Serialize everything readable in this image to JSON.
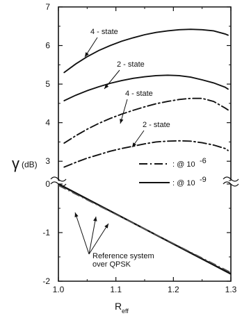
{
  "chart_data": {
    "type": "line",
    "x_label": "R",
    "x_label_sub": "eff",
    "y_label_symbol": "γ",
    "y_label_unit": "(dB)",
    "xlim": [
      1.0,
      1.3
    ],
    "x_ticks": [
      "1.0",
      "1.1",
      "1.2",
      "1.3"
    ],
    "upper_panel": {
      "ylim": [
        2.5,
        7.0
      ],
      "y_ticks": [
        "3",
        "4",
        "5",
        "6",
        "7"
      ],
      "series": [
        {
          "curve_label": "4 - state",
          "style": "solid",
          "points": [
            [
              1.01,
              5.3
            ],
            [
              1.03,
              5.52
            ],
            [
              1.05,
              5.71
            ],
            [
              1.07,
              5.87
            ],
            [
              1.09,
              6.0
            ],
            [
              1.11,
              6.11
            ],
            [
              1.13,
              6.2
            ],
            [
              1.15,
              6.28
            ],
            [
              1.17,
              6.34
            ],
            [
              1.19,
              6.38
            ],
            [
              1.21,
              6.41
            ],
            [
              1.23,
              6.42
            ],
            [
              1.25,
              6.41
            ],
            [
              1.27,
              6.38
            ],
            [
              1.29,
              6.3
            ],
            [
              1.295,
              6.27
            ]
          ]
        },
        {
          "curve_label": "2 - state",
          "style": "solid",
          "points": [
            [
              1.01,
              4.57
            ],
            [
              1.03,
              4.71
            ],
            [
              1.05,
              4.83
            ],
            [
              1.07,
              4.93
            ],
            [
              1.09,
              5.02
            ],
            [
              1.11,
              5.09
            ],
            [
              1.13,
              5.15
            ],
            [
              1.15,
              5.19
            ],
            [
              1.17,
              5.22
            ],
            [
              1.19,
              5.23
            ],
            [
              1.21,
              5.22
            ],
            [
              1.23,
              5.18
            ],
            [
              1.25,
              5.11
            ],
            [
              1.27,
              5.03
            ],
            [
              1.29,
              4.92
            ],
            [
              1.295,
              4.87
            ]
          ]
        },
        {
          "curve_label": "4 - state",
          "style": "dash-dot",
          "points": [
            [
              1.01,
              3.47
            ],
            [
              1.03,
              3.66
            ],
            [
              1.05,
              3.83
            ],
            [
              1.07,
              3.98
            ],
            [
              1.09,
              4.11
            ],
            [
              1.11,
              4.22
            ],
            [
              1.13,
              4.32
            ],
            [
              1.15,
              4.41
            ],
            [
              1.17,
              4.49
            ],
            [
              1.19,
              4.55
            ],
            [
              1.21,
              4.6
            ],
            [
              1.23,
              4.63
            ],
            [
              1.25,
              4.63
            ],
            [
              1.27,
              4.55
            ],
            [
              1.29,
              4.38
            ],
            [
              1.295,
              4.33
            ]
          ]
        },
        {
          "curve_label": "2 - state",
          "style": "dash-dot",
          "points": [
            [
              1.01,
              2.85
            ],
            [
              1.03,
              2.97
            ],
            [
              1.05,
              3.08
            ],
            [
              1.07,
              3.17
            ],
            [
              1.09,
              3.26
            ],
            [
              1.11,
              3.33
            ],
            [
              1.13,
              3.39
            ],
            [
              1.15,
              3.45
            ],
            [
              1.17,
              3.5
            ],
            [
              1.19,
              3.52
            ],
            [
              1.21,
              3.53
            ],
            [
              1.23,
              3.52
            ],
            [
              1.25,
              3.48
            ],
            [
              1.27,
              3.42
            ],
            [
              1.29,
              3.33
            ],
            [
              1.295,
              3.28
            ]
          ]
        }
      ],
      "legend": [
        {
          "style": "dash-dot",
          "text": ": @ 10",
          "exponent": "-6"
        },
        {
          "style": "solid",
          "text": ": @ 10",
          "exponent": "-9"
        }
      ]
    },
    "lower_panel": {
      "ylim": [
        -2.0,
        0.0
      ],
      "y_ticks": [
        "0",
        "-1",
        "-2"
      ],
      "series": [
        {
          "style": "solid",
          "points": [
            [
              1.0,
              0.0
            ],
            [
              1.3,
              -1.85
            ]
          ]
        },
        {
          "style": "dash-dot",
          "points": [
            [
              1.0,
              -0.03
            ],
            [
              1.3,
              -1.82
            ]
          ]
        }
      ],
      "annotation": [
        "Reference system",
        "over QPSK"
      ]
    }
  }
}
